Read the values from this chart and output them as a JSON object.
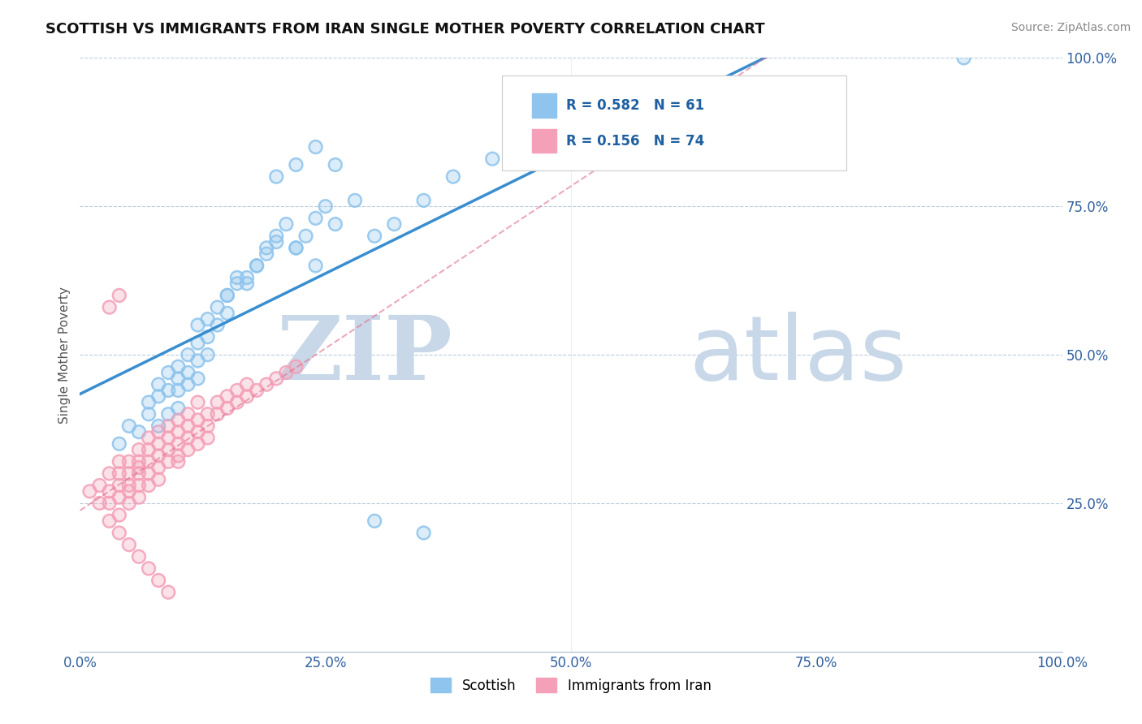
{
  "title": "SCOTTISH VS IMMIGRANTS FROM IRAN SINGLE MOTHER POVERTY CORRELATION CHART",
  "source": "Source: ZipAtlas.com",
  "ylabel": "Single Mother Poverty",
  "legend_labels": [
    "Scottish",
    "Immigrants from Iran"
  ],
  "R_scottish": 0.582,
  "N_scottish": 61,
  "R_iran": 0.156,
  "N_iran": 74,
  "scottish_color": "#8EC4ED",
  "iran_color": "#F4A0B8",
  "scottish_line_color": "#3A8ED0",
  "iran_line_color": "#E07090",
  "iran_dashed_color": "#D0A0B0",
  "background_color": "#FFFFFF",
  "watermark_zip": "ZIP",
  "watermark_atlas": "atlas",
  "watermark_color": "#C8D8E8",
  "xlim": [
    0.0,
    1.0
  ],
  "ylim": [
    0.0,
    1.0
  ],
  "xticks": [
    0.0,
    0.25,
    0.5,
    0.75,
    1.0
  ],
  "yticks": [
    0.0,
    0.25,
    0.5,
    0.75,
    1.0
  ],
  "xticklabels": [
    "0.0%",
    "25.0%",
    "50.0%",
    "75.0%",
    "100.0%"
  ],
  "yticklabels_right": [
    "100.0%",
    "75.0%",
    "50.0%",
    "25.0%"
  ],
  "scottish_x": [
    0.04,
    0.05,
    0.06,
    0.07,
    0.07,
    0.08,
    0.08,
    0.08,
    0.09,
    0.09,
    0.09,
    0.1,
    0.1,
    0.1,
    0.1,
    0.11,
    0.11,
    0.11,
    0.12,
    0.12,
    0.12,
    0.12,
    0.13,
    0.13,
    0.13,
    0.14,
    0.14,
    0.15,
    0.15,
    0.16,
    0.17,
    0.18,
    0.19,
    0.2,
    0.21,
    0.22,
    0.23,
    0.24,
    0.25,
    0.26,
    0.28,
    0.3,
    0.32,
    0.35,
    0.38,
    0.42,
    0.2,
    0.22,
    0.24,
    0.26,
    0.15,
    0.16,
    0.17,
    0.18,
    0.19,
    0.2,
    0.22,
    0.24,
    0.3,
    0.35,
    0.9
  ],
  "scottish_y": [
    0.35,
    0.38,
    0.37,
    0.4,
    0.42,
    0.38,
    0.43,
    0.45,
    0.4,
    0.44,
    0.47,
    0.41,
    0.44,
    0.46,
    0.48,
    0.45,
    0.47,
    0.5,
    0.46,
    0.49,
    0.52,
    0.55,
    0.5,
    0.53,
    0.56,
    0.55,
    0.58,
    0.57,
    0.6,
    0.63,
    0.62,
    0.65,
    0.68,
    0.7,
    0.72,
    0.68,
    0.7,
    0.73,
    0.75,
    0.72,
    0.76,
    0.7,
    0.72,
    0.76,
    0.8,
    0.83,
    0.8,
    0.82,
    0.85,
    0.82,
    0.6,
    0.62,
    0.63,
    0.65,
    0.67,
    0.69,
    0.68,
    0.65,
    0.22,
    0.2,
    1.0
  ],
  "iran_x": [
    0.01,
    0.02,
    0.02,
    0.03,
    0.03,
    0.03,
    0.03,
    0.04,
    0.04,
    0.04,
    0.04,
    0.04,
    0.05,
    0.05,
    0.05,
    0.05,
    0.05,
    0.06,
    0.06,
    0.06,
    0.06,
    0.06,
    0.06,
    0.07,
    0.07,
    0.07,
    0.07,
    0.07,
    0.08,
    0.08,
    0.08,
    0.08,
    0.08,
    0.09,
    0.09,
    0.09,
    0.09,
    0.1,
    0.1,
    0.1,
    0.1,
    0.1,
    0.11,
    0.11,
    0.11,
    0.11,
    0.12,
    0.12,
    0.12,
    0.12,
    0.13,
    0.13,
    0.13,
    0.14,
    0.14,
    0.15,
    0.15,
    0.16,
    0.16,
    0.17,
    0.17,
    0.18,
    0.19,
    0.2,
    0.21,
    0.22,
    0.04,
    0.05,
    0.06,
    0.07,
    0.08,
    0.09,
    0.03,
    0.04
  ],
  "iran_y": [
    0.27,
    0.25,
    0.28,
    0.25,
    0.27,
    0.22,
    0.3,
    0.28,
    0.26,
    0.3,
    0.23,
    0.32,
    0.3,
    0.28,
    0.27,
    0.32,
    0.25,
    0.3,
    0.32,
    0.28,
    0.34,
    0.26,
    0.31,
    0.32,
    0.3,
    0.34,
    0.28,
    0.36,
    0.33,
    0.31,
    0.35,
    0.37,
    0.29,
    0.34,
    0.36,
    0.32,
    0.38,
    0.35,
    0.37,
    0.33,
    0.39,
    0.32,
    0.36,
    0.38,
    0.34,
    0.4,
    0.37,
    0.39,
    0.35,
    0.42,
    0.38,
    0.4,
    0.36,
    0.4,
    0.42,
    0.41,
    0.43,
    0.42,
    0.44,
    0.43,
    0.45,
    0.44,
    0.45,
    0.46,
    0.47,
    0.48,
    0.2,
    0.18,
    0.16,
    0.14,
    0.12,
    0.1,
    0.58,
    0.6
  ]
}
